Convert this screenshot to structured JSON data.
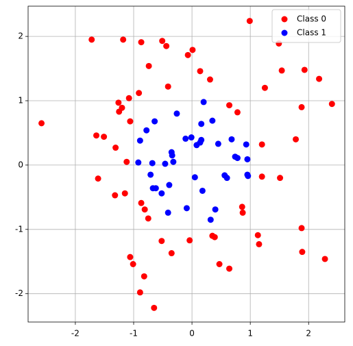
{
  "chart_data": {
    "type": "scatter",
    "xlim": [
      -2.81,
      2.62
    ],
    "ylim": [
      -2.44,
      2.47
    ],
    "xticks": [
      -2,
      -1,
      0,
      1,
      2
    ],
    "yticks": [
      -2,
      -1,
      0,
      1,
      2
    ],
    "grid": true,
    "legend": "upper right",
    "series": [
      {
        "name": "Class 0",
        "color": "#ff0000",
        "x": [
          -2.58,
          -1.72,
          -1.18,
          -0.87,
          -0.51,
          -0.44,
          -0.74,
          -0.41,
          -0.07,
          0.01,
          0.14,
          0.31,
          0.99,
          1.49,
          1.54,
          1.25,
          1.93,
          2.18,
          1.88,
          2.4,
          1.78,
          1.2,
          1.2,
          1.51,
          0.64,
          0.78,
          -1.26,
          -1.08,
          -0.91,
          -1.2,
          -1.25,
          -1.06,
          -1.64,
          -1.51,
          -1.31,
          -1.12,
          -1.61,
          -1.32,
          -1.15,
          -0.87,
          -0.81,
          -0.75,
          -0.52,
          -0.04,
          -0.35,
          0.39,
          0.35,
          0.86,
          0.87,
          1.13,
          1.15,
          0.47,
          0.64,
          -1.06,
          -1.01,
          -0.82,
          -0.89,
          -0.65,
          1.88,
          1.89,
          2.28
        ],
        "values": [
          0.65,
          1.95,
          1.95,
          1.91,
          1.93,
          1.85,
          1.54,
          1.22,
          1.71,
          1.79,
          1.46,
          1.33,
          2.24,
          1.89,
          1.47,
          1.2,
          1.48,
          1.34,
          0.9,
          0.95,
          0.4,
          0.32,
          -0.18,
          -0.2,
          0.93,
          0.82,
          0.97,
          1.04,
          1.12,
          0.89,
          0.83,
          0.68,
          0.46,
          0.44,
          0.27,
          0.05,
          -0.21,
          -0.47,
          -0.44,
          -0.59,
          -0.69,
          -0.83,
          -1.18,
          -1.17,
          -1.37,
          -1.12,
          -1.1,
          -0.65,
          -0.74,
          -1.09,
          -1.23,
          -1.54,
          -1.61,
          -1.43,
          -1.54,
          -1.73,
          -1.98,
          -2.22,
          -0.98,
          -1.35,
          -1.46
        ]
      },
      {
        "name": "Class 1",
        "color": "#0000ff",
        "x": [
          -0.26,
          0.2,
          -0.78,
          -0.64,
          -0.89,
          -0.11,
          -0.01,
          0.08,
          0.14,
          0.16,
          0.16,
          0.35,
          0.45,
          0.68,
          0.74,
          0.78,
          0.93,
          0.95,
          0.95,
          0.96,
          -0.35,
          -0.34,
          -0.32,
          -0.68,
          -0.46,
          -0.92,
          -0.71,
          -0.67,
          -0.62,
          -0.52,
          -0.39,
          -0.09,
          0.05,
          0.18,
          0.4,
          0.56,
          0.6,
          0.32,
          -0.41
        ],
        "values": [
          0.8,
          0.98,
          0.54,
          0.68,
          0.38,
          0.41,
          0.43,
          0.31,
          0.35,
          0.39,
          0.64,
          0.69,
          0.33,
          0.4,
          0.13,
          0.11,
          0.32,
          0.09,
          -0.15,
          -0.17,
          0.2,
          0.15,
          0.05,
          0.03,
          0.02,
          0.04,
          -0.15,
          -0.36,
          -0.36,
          -0.44,
          -0.31,
          -0.67,
          -0.19,
          -0.4,
          -0.69,
          -0.16,
          -0.2,
          -0.85,
          -0.74
        ]
      }
    ]
  }
}
